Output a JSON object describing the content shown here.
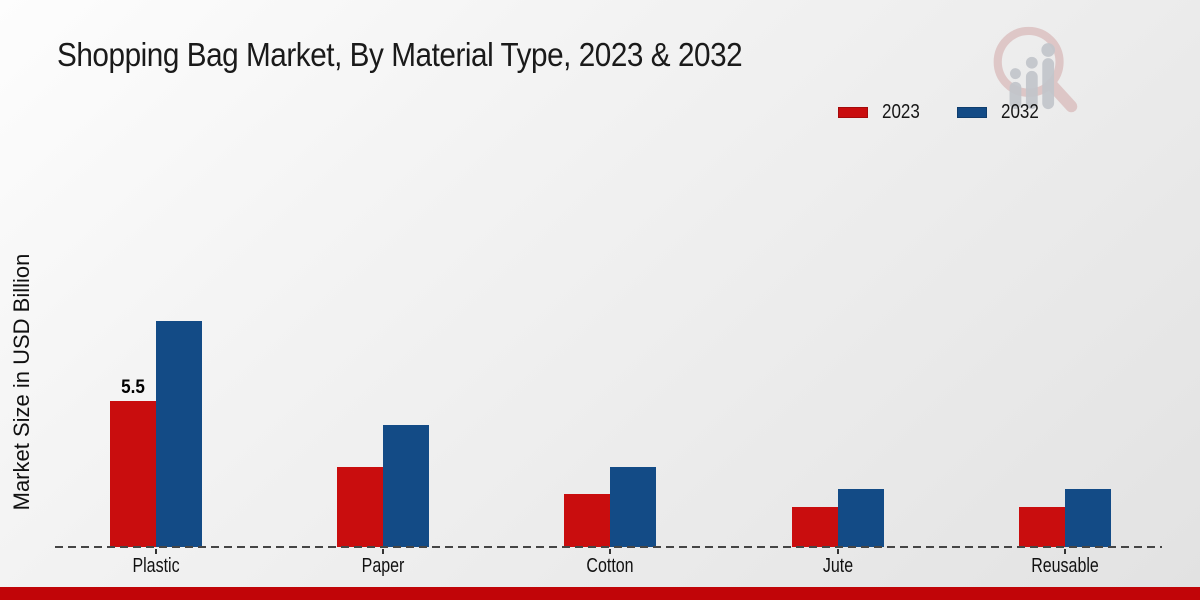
{
  "title": "Shopping Bag Market, By Material Type, 2023 & 2032",
  "ylabel": "Market Size in USD Billion",
  "legend": [
    {
      "label": "2023",
      "color": "#c90d0e"
    },
    {
      "label": "2032",
      "color": "#134b86"
    }
  ],
  "colors": {
    "series_2023": "#c90d0e",
    "series_2032": "#134b86",
    "footer_accent": "#c10508",
    "axis_dash": "#454545"
  },
  "chart_data": {
    "type": "bar",
    "categories": [
      "Plastic",
      "Paper",
      "Cotton",
      "Jute",
      "Reusable"
    ],
    "series": [
      {
        "name": "2023",
        "color": "#c90d0e",
        "values": [
          5.5,
          3.0,
          2.0,
          1.5,
          1.5
        ]
      },
      {
        "name": "2032",
        "color": "#134b86",
        "values": [
          8.5,
          4.6,
          3.0,
          2.2,
          2.2
        ]
      }
    ],
    "annotations": [
      {
        "category": "Plastic",
        "series": "2023",
        "text": "5.5"
      }
    ],
    "title": "Shopping Bag Market, By Material Type, 2023 & 2032",
    "xlabel": "",
    "ylabel": "Market Size in USD Billion",
    "ylim": [
      0,
      9
    ],
    "grid": false,
    "legend_position": "top-right",
    "baseline_style": "dashed"
  }
}
